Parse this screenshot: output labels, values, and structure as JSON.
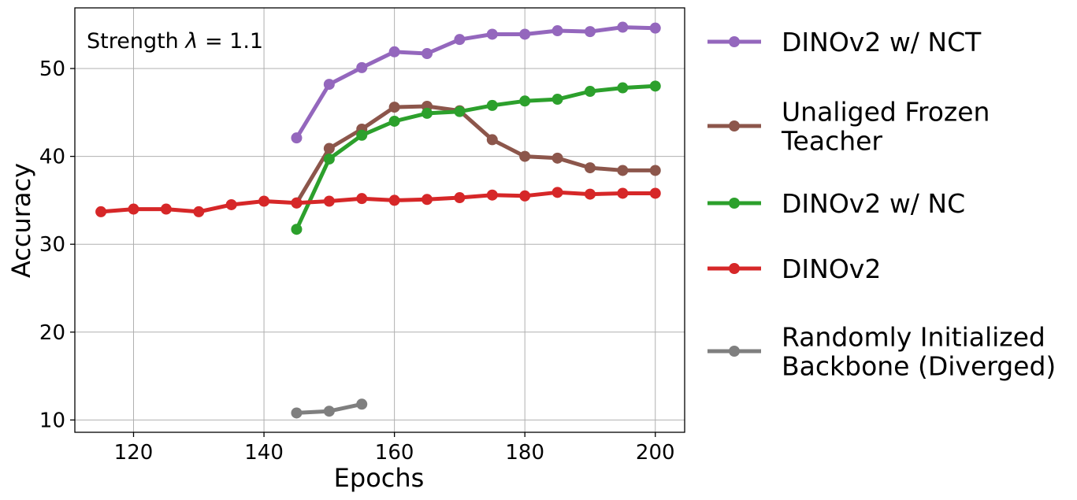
{
  "chart_data": {
    "type": "line",
    "xlabel": "Epochs",
    "ylabel": "Accuracy",
    "xlim": [
      111,
      204.5
    ],
    "ylim": [
      8.6,
      56.9
    ],
    "xticks": [
      120,
      140,
      160,
      180,
      200
    ],
    "yticks": [
      10,
      20,
      30,
      40,
      50
    ],
    "grid": true,
    "legend_position": "right-outside",
    "annotation": {
      "prefix": "Strength ",
      "symbol": "λ",
      "suffix": " = 1.1"
    },
    "series": [
      {
        "name": "DINOv2 w/ NCT",
        "color": "#9467bd",
        "x": [
          145,
          150,
          155,
          160,
          165,
          170,
          175,
          180,
          185,
          190,
          195,
          200
        ],
        "y": [
          42.1,
          48.2,
          50.1,
          51.9,
          51.7,
          53.3,
          53.9,
          53.9,
          54.3,
          54.2,
          54.7,
          54.6
        ]
      },
      {
        "name": "Unaliged Frozen\nTeacher",
        "color": "#8c564b",
        "x": [
          145,
          150,
          155,
          160,
          165,
          170,
          175,
          180,
          185,
          190,
          195,
          200
        ],
        "y": [
          34.7,
          40.9,
          43.1,
          45.6,
          45.7,
          45.2,
          41.9,
          40.0,
          39.8,
          38.7,
          38.4,
          38.4
        ]
      },
      {
        "name": "DINOv2 w/ NC",
        "color": "#2ca02c",
        "x": [
          145,
          150,
          155,
          160,
          165,
          170,
          175,
          180,
          185,
          190,
          195,
          200
        ],
        "y": [
          31.7,
          39.7,
          42.4,
          44.0,
          44.9,
          45.1,
          45.8,
          46.3,
          46.5,
          47.4,
          47.8,
          48.0
        ]
      },
      {
        "name": "DINOv2",
        "color": "#d62728",
        "x": [
          115,
          120,
          125,
          130,
          135,
          140,
          145,
          150,
          155,
          160,
          165,
          170,
          175,
          180,
          185,
          190,
          195,
          200
        ],
        "y": [
          33.7,
          34.0,
          34.0,
          33.7,
          34.5,
          34.9,
          34.7,
          34.9,
          35.2,
          35.0,
          35.1,
          35.3,
          35.6,
          35.5,
          35.9,
          35.7,
          35.8,
          35.8
        ]
      },
      {
        "name": "Randomly Initialized\nBackbone (Diverged)",
        "color": "#7f7f7f",
        "x": [
          145,
          150,
          155
        ],
        "y": [
          10.8,
          11.0,
          11.8
        ]
      }
    ]
  }
}
